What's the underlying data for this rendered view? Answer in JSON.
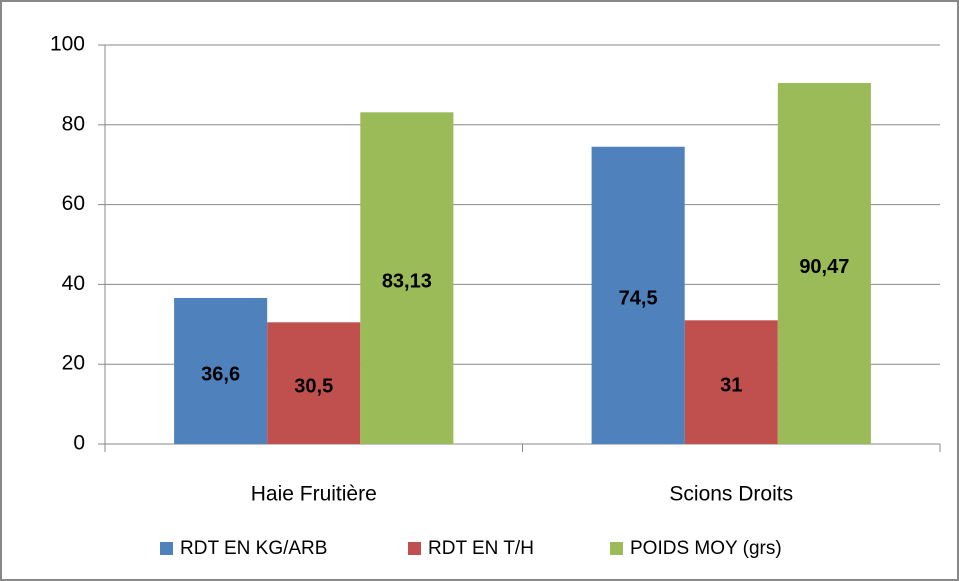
{
  "chart_data": {
    "type": "bar",
    "categories": [
      "Haie Fruitière",
      "Scions Droits"
    ],
    "series": [
      {
        "name": "RDT EN KG/ARB",
        "color": "#4f81bd",
        "values": [
          36.6,
          74.5
        ],
        "value_labels": [
          "36,6",
          "74,5"
        ]
      },
      {
        "name": "RDT EN T/H",
        "color": "#c0504d",
        "values": [
          30.5,
          31
        ],
        "value_labels": [
          "30,5",
          "31"
        ]
      },
      {
        "name": "POIDS MOY (grs)",
        "color": "#9bbb59",
        "values": [
          83.13,
          90.47
        ],
        "value_labels": [
          "83,13",
          "90,47"
        ]
      }
    ],
    "ylim": [
      0,
      100
    ],
    "yticks": [
      0,
      20,
      40,
      60,
      80,
      100
    ],
    "grid": true,
    "legend": "bottom"
  }
}
